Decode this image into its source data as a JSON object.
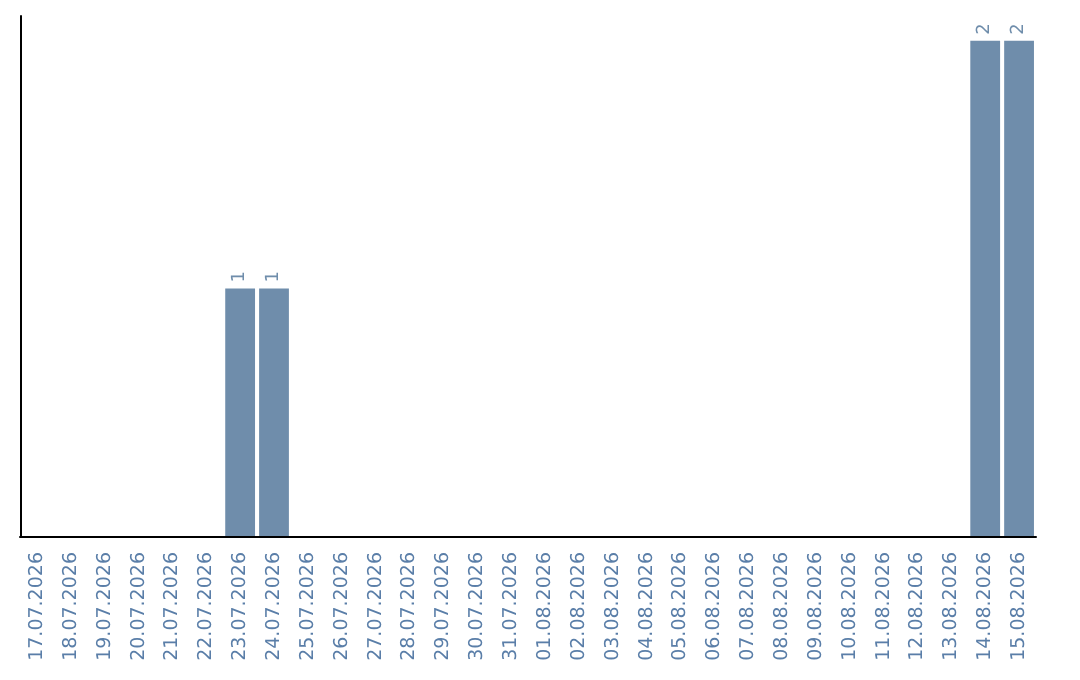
{
  "chart_data": {
    "type": "bar",
    "categories": [
      "17.07.2026",
      "18.07.2026",
      "19.07.2026",
      "20.07.2026",
      "21.07.2026",
      "22.07.2026",
      "23.07.2026",
      "24.07.2026",
      "25.07.2026",
      "26.07.2026",
      "27.07.2026",
      "28.07.2026",
      "29.07.2026",
      "30.07.2026",
      "31.07.2026",
      "01.08.2026",
      "02.08.2026",
      "03.08.2026",
      "04.08.2026",
      "05.08.2026",
      "06.08.2026",
      "07.08.2026",
      "08.08.2026",
      "09.08.2026",
      "10.08.2026",
      "11.08.2026",
      "12.08.2026",
      "13.08.2026",
      "14.08.2026",
      "15.08.2026"
    ],
    "values": [
      0,
      0,
      0,
      0,
      0,
      0,
      1,
      1,
      0,
      0,
      0,
      0,
      0,
      0,
      0,
      0,
      0,
      0,
      0,
      0,
      0,
      0,
      0,
      0,
      0,
      0,
      0,
      0,
      2,
      2
    ],
    "value_labels": [
      null,
      null,
      null,
      null,
      null,
      null,
      "1",
      "1",
      null,
      null,
      null,
      null,
      null,
      null,
      null,
      null,
      null,
      null,
      null,
      null,
      null,
      null,
      null,
      null,
      null,
      null,
      null,
      null,
      "2",
      "2"
    ],
    "color": "#6f8dab",
    "grid": false,
    "tick_labels": "x"
  }
}
